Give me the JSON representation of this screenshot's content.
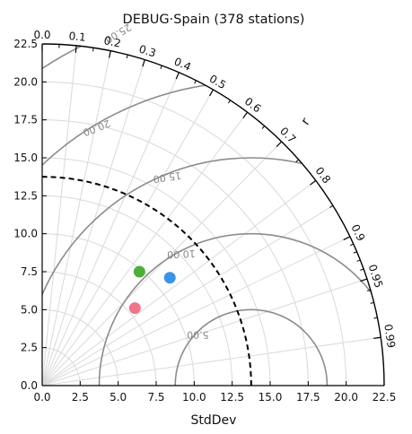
{
  "chart_data": {
    "type": "scatter",
    "subtype": "taylor-diagram",
    "title": "DEBUG·Spain (378 stations)",
    "xlabel": "StdDev",
    "corr_axis_label": "r",
    "std_ticks": [
      "0.0",
      "2.5",
      "5.0",
      "7.5",
      "10.0",
      "12.5",
      "15.0",
      "17.5",
      "20.0",
      "22.5"
    ],
    "std_tick_values": [
      0,
      2.5,
      5,
      7.5,
      10,
      12.5,
      15,
      17.5,
      20,
      22.5
    ],
    "std_range": [
      0,
      22.5
    ],
    "corr_ticks": [
      "0.0",
      "0.1",
      "0.2",
      "0.3",
      "0.4",
      "0.5",
      "0.6",
      "0.7",
      "0.8",
      "0.9",
      "0.95",
      "0.99"
    ],
    "corr_tick_values": [
      0,
      0.1,
      0.2,
      0.3,
      0.4,
      0.5,
      0.6,
      0.7,
      0.8,
      0.9,
      0.95,
      0.99
    ],
    "reference_std": 13.75,
    "rms_contours": [
      {
        "value": 5,
        "label": "5.00"
      },
      {
        "value": 10,
        "label": "10.00"
      },
      {
        "value": 15,
        "label": "15.00"
      },
      {
        "value": 20,
        "label": "20.00"
      },
      {
        "value": 25,
        "label": "25.00"
      }
    ],
    "points": [
      {
        "x": 6.4,
        "y": 7.5,
        "color": "#4caf3a"
      },
      {
        "x": 8.4,
        "y": 7.1,
        "color": "#3b95e6"
      },
      {
        "x": 6.1,
        "y": 5.1,
        "color": "#f07488"
      }
    ],
    "grid": true,
    "colors": {
      "axis": "#000000",
      "grid": "#d9d9d9",
      "rms": "#8c8c8c",
      "reference": "#000000"
    }
  }
}
